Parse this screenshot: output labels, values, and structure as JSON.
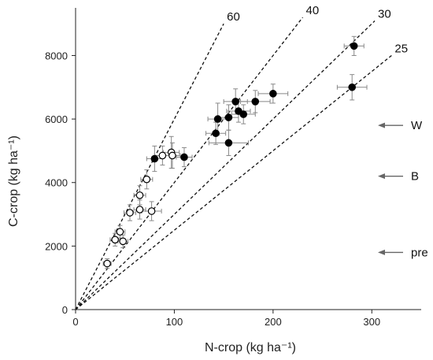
{
  "chart_data": {
    "type": "scatter",
    "xlabel": "N-crop (kg ha⁻¹)",
    "ylabel": "C-crop (kg ha⁻¹)",
    "xlim": [
      0,
      350
    ],
    "ylim": [
      0,
      9500
    ],
    "x_ticks": [
      "0",
      "100",
      "200",
      "300"
    ],
    "y_ticks": [
      "0",
      "2000",
      "4000",
      "6000",
      "8000"
    ],
    "grid": false,
    "legend": "none",
    "reference_lines": [
      {
        "label": "60",
        "slope": 60,
        "x_end": 150
      },
      {
        "label": "40",
        "slope": 40,
        "x_end": 230
      },
      {
        "label": "30",
        "slope": 30,
        "x_end": 303
      },
      {
        "label": "25",
        "slope": 25,
        "x_end": 320
      }
    ],
    "series": [
      {
        "marker": "filled",
        "color": "#000000",
        "points": [
          {
            "x": 80,
            "y": 4750,
            "xerr": 8,
            "yerr": 400
          },
          {
            "x": 110,
            "y": 4800,
            "xerr": 8,
            "yerr": 300
          },
          {
            "x": 142,
            "y": 5550,
            "xerr": 10,
            "yerr": 350
          },
          {
            "x": 144,
            "y": 6000,
            "xerr": 10,
            "yerr": 500
          },
          {
            "x": 155,
            "y": 6050,
            "xerr": 10,
            "yerr": 400
          },
          {
            "x": 155,
            "y": 5250,
            "xerr": 20,
            "yerr": 400
          },
          {
            "x": 162,
            "y": 6550,
            "xerr": 12,
            "yerr": 400
          },
          {
            "x": 165,
            "y": 6250,
            "xerr": 12,
            "yerr": 350
          },
          {
            "x": 170,
            "y": 6150,
            "xerr": 12,
            "yerr": 300
          },
          {
            "x": 182,
            "y": 6550,
            "xerr": 15,
            "yerr": 350
          },
          {
            "x": 200,
            "y": 6800,
            "xerr": 15,
            "yerr": 300
          },
          {
            "x": 280,
            "y": 7000,
            "xerr": 15,
            "yerr": 400
          },
          {
            "x": 282,
            "y": 8300,
            "xerr": 10,
            "yerr": 300
          }
        ]
      },
      {
        "marker": "open",
        "color": "#000000",
        "points": [
          {
            "x": 32,
            "y": 1450,
            "xerr": 4,
            "yerr": 150
          },
          {
            "x": 40,
            "y": 2200,
            "xerr": 5,
            "yerr": 200
          },
          {
            "x": 45,
            "y": 2450,
            "xerr": 5,
            "yerr": 200
          },
          {
            "x": 48,
            "y": 2150,
            "xerr": 5,
            "yerr": 200
          },
          {
            "x": 55,
            "y": 3050,
            "xerr": 6,
            "yerr": 250
          },
          {
            "x": 65,
            "y": 3600,
            "xerr": 6,
            "yerr": 300
          },
          {
            "x": 65,
            "y": 3150,
            "xerr": 6,
            "yerr": 300
          },
          {
            "x": 72,
            "y": 4100,
            "xerr": 6,
            "yerr": 300
          },
          {
            "x": 77,
            "y": 3100,
            "xerr": 10,
            "yerr": 300
          },
          {
            "x": 88,
            "y": 4850,
            "xerr": 8,
            "yerr": 300
          },
          {
            "x": 97,
            "y": 4950,
            "xerr": 8,
            "yerr": 500
          },
          {
            "x": 98,
            "y": 4850,
            "xerr": 8,
            "yerr": 400
          }
        ]
      }
    ],
    "annotations": [
      {
        "label": "W",
        "y": 5800
      },
      {
        "label": "B",
        "y": 4200
      },
      {
        "label": "pre",
        "y": 1800
      }
    ]
  }
}
